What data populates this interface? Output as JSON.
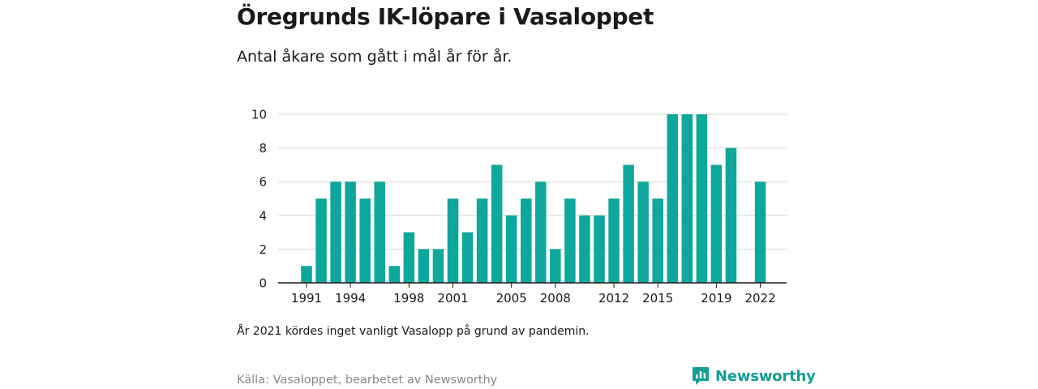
{
  "chart_data": {
    "type": "bar",
    "title": "Öregrunds IK-löpare i Vasaloppet",
    "subtitle": "Antal åkare som gått i mål år för år.",
    "years": [
      1991,
      1992,
      1993,
      1994,
      1995,
      1996,
      1997,
      1998,
      1999,
      2000,
      2001,
      2002,
      2003,
      2004,
      2005,
      2006,
      2007,
      2008,
      2009,
      2010,
      2011,
      2012,
      2013,
      2014,
      2015,
      2016,
      2017,
      2018,
      2019,
      2020,
      2021,
      2022
    ],
    "values": [
      1,
      5,
      6,
      6,
      5,
      6,
      1,
      3,
      2,
      2,
      5,
      3,
      5,
      7,
      4,
      5,
      6,
      2,
      5,
      4,
      4,
      5,
      7,
      6,
      5,
      10,
      10,
      10,
      7,
      8,
      null,
      6
    ],
    "x_tick_labels": [
      "1991",
      "1994",
      "1998",
      "2001",
      "2005",
      "2008",
      "2012",
      "2015",
      "2019",
      "2022"
    ],
    "y_ticks": [
      0,
      2,
      4,
      6,
      8,
      10
    ],
    "ylim": [
      0,
      10
    ],
    "grid": true,
    "bar_color": "#0ea79b",
    "note": "År 2021 kördes inget vanligt Vasalopp på grund av pandemin.",
    "source": "Källa: Vasaloppet, bearbetet av Newsworthy"
  },
  "brand": {
    "name": "Newsworthy",
    "color": "#139e96",
    "icon": "newsworthy-logo-icon"
  }
}
